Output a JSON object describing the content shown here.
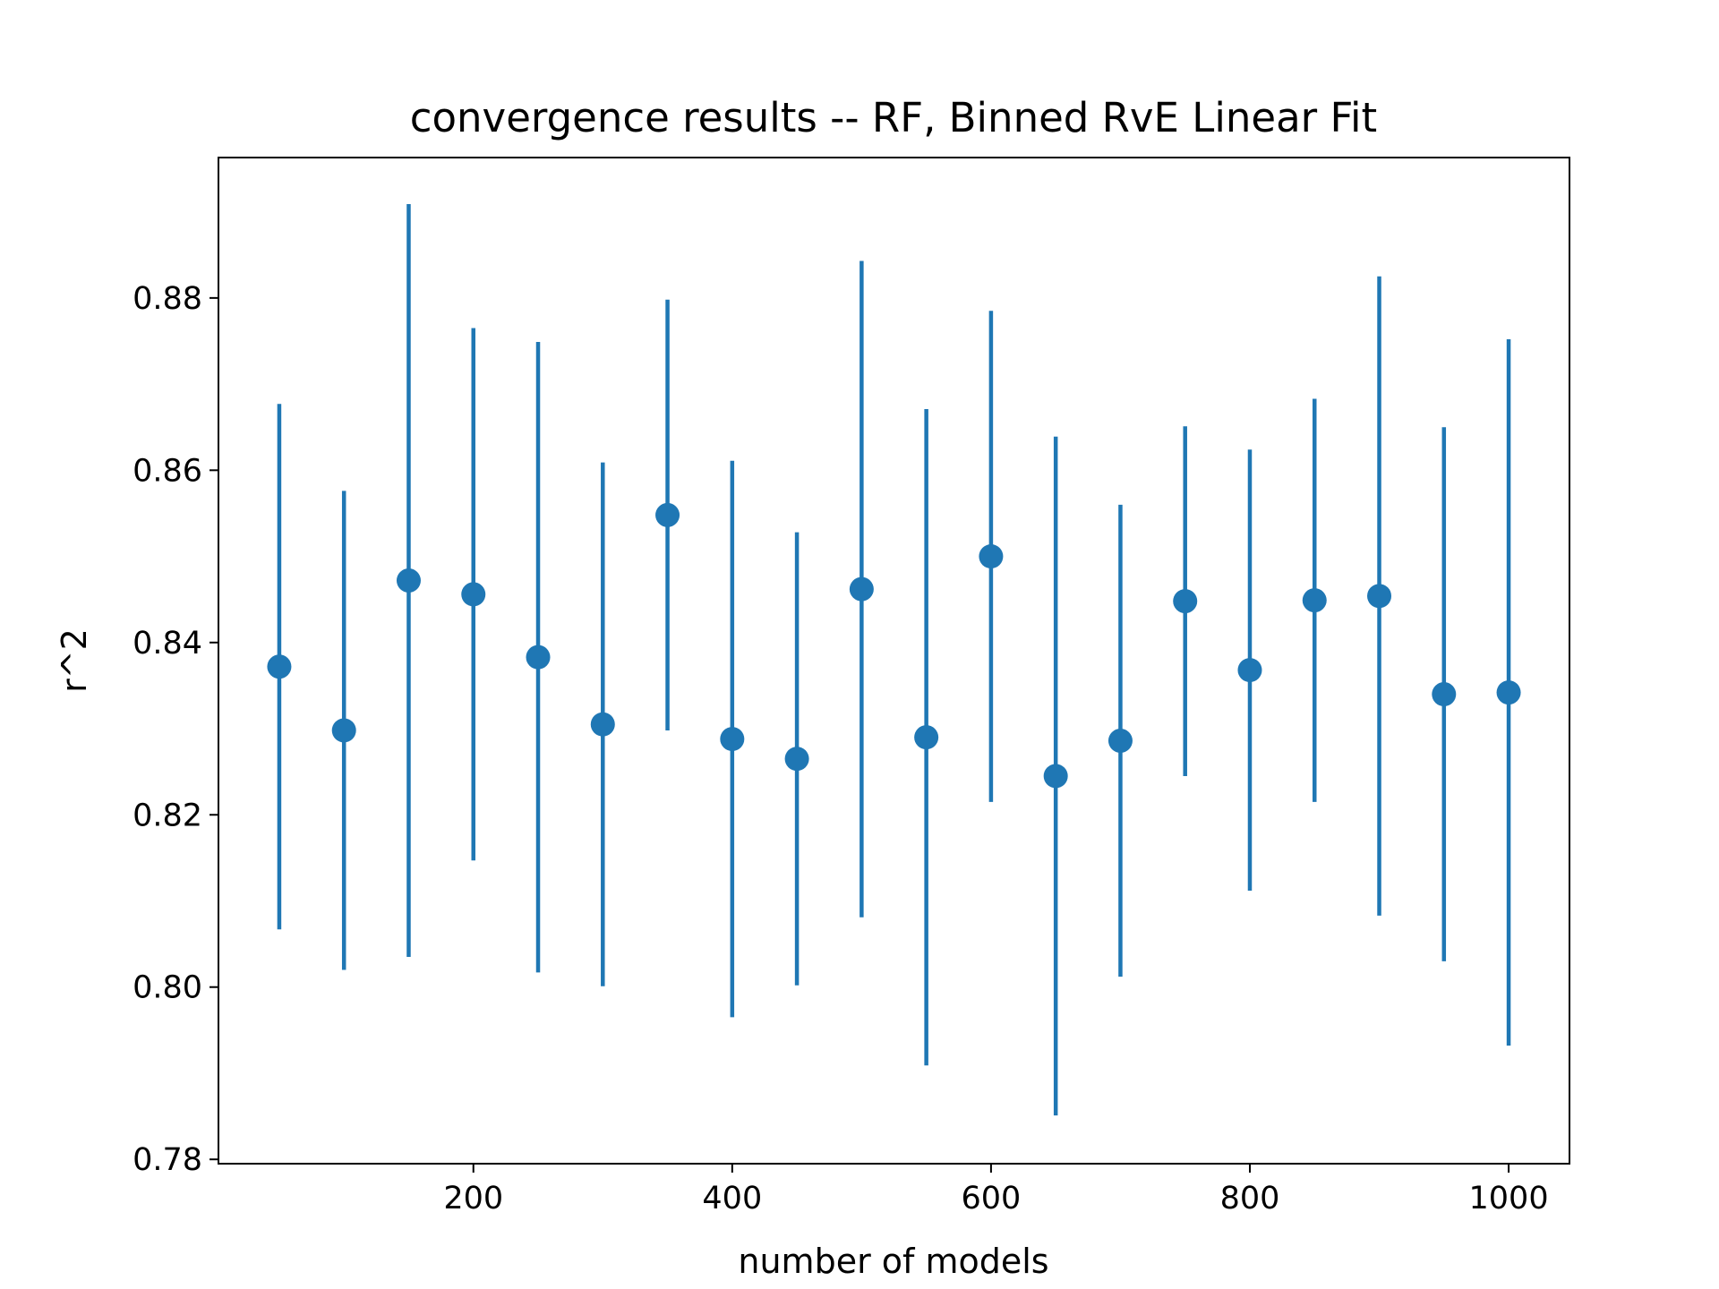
{
  "chart_data": {
    "type": "scatter",
    "title": "convergence results -- RF, Binned RvE Linear Fit",
    "xlabel": "number of models",
    "ylabel": "r^2",
    "xlim": [
      3,
      1047
    ],
    "ylim": [
      0.7795,
      0.8963
    ],
    "xticks": [
      200,
      400,
      600,
      800,
      1000
    ],
    "xtick_labels": [
      "200",
      "400",
      "600",
      "800",
      "1000"
    ],
    "yticks": [
      0.78,
      0.8,
      0.82,
      0.84,
      0.86,
      0.88
    ],
    "ytick_labels": [
      "0.78",
      "0.80",
      "0.82",
      "0.84",
      "0.86",
      "0.88"
    ],
    "grid": false,
    "legend": "none",
    "color": "#1f77b4",
    "series": [
      {
        "x": [
          50,
          100,
          150,
          200,
          250,
          300,
          350,
          400,
          450,
          500,
          550,
          600,
          650,
          700,
          750,
          800,
          850,
          900,
          950,
          1000
        ],
        "y": [
          0.8372,
          0.8298,
          0.8472,
          0.8456,
          0.8383,
          0.8305,
          0.8548,
          0.8288,
          0.8265,
          0.8462,
          0.829,
          0.85,
          0.8245,
          0.8286,
          0.8448,
          0.8368,
          0.8449,
          0.8454,
          0.834,
          0.8342
        ],
        "err": [
          0.0305,
          0.0278,
          0.0437,
          0.0309,
          0.0366,
          0.0304,
          0.025,
          0.0323,
          0.0263,
          0.0381,
          0.0381,
          0.0285,
          0.0394,
          0.0274,
          0.0203,
          0.0256,
          0.0234,
          0.0371,
          0.031,
          0.041
        ]
      }
    ]
  }
}
